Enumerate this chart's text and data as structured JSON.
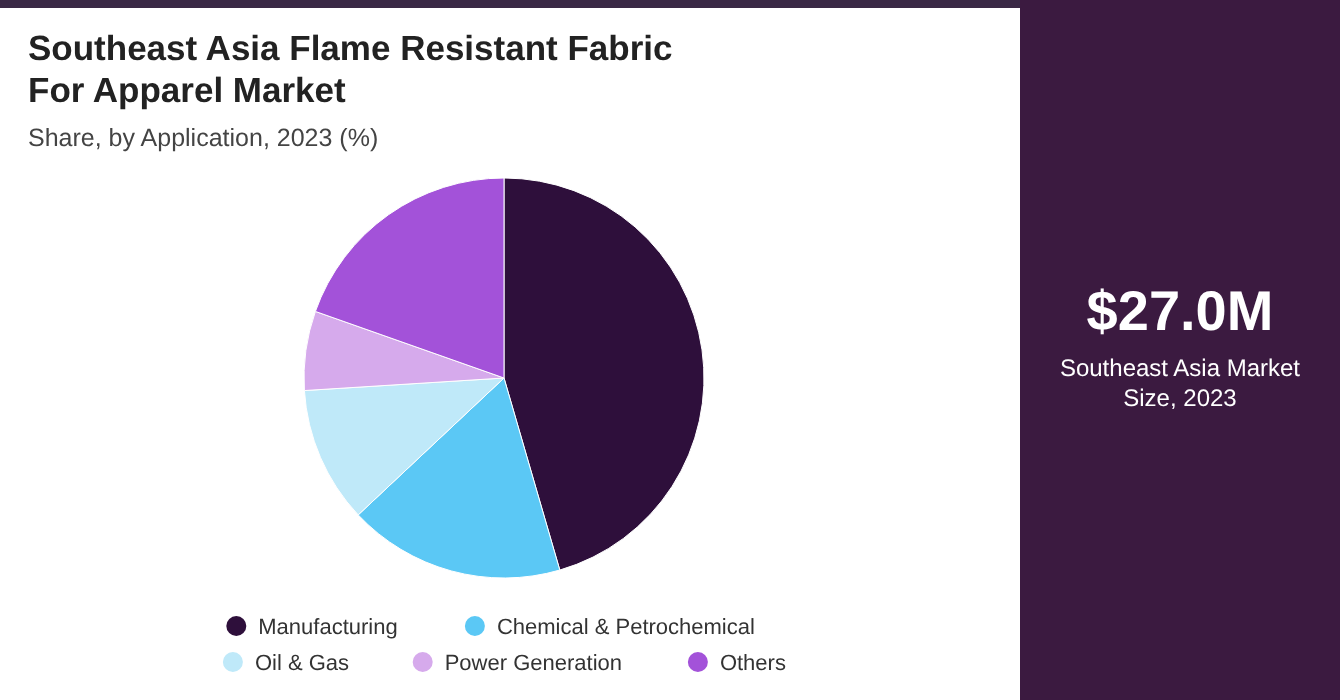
{
  "chart_data": {
    "type": "pie",
    "title": "Southeast Asia Flame Resistant Fabric For Apparel Market",
    "subtitle": "Share, by Application, 2023 (%)",
    "categories": [
      "Manufacturing",
      "Chemical & Petrochemical",
      "Oil & Gas",
      "Power Generation",
      "Others"
    ],
    "values": [
      45.5,
      17.5,
      11,
      6.4,
      19.6
    ],
    "colors": [
      "#2e0f3b",
      "#5bc8f5",
      "#bfe9f9",
      "#d6aaec",
      "#a352d9"
    ],
    "legend": "bottom",
    "annotations": [
      "$27.0M",
      "Southeast Asia Market Size, 2023"
    ]
  }
}
